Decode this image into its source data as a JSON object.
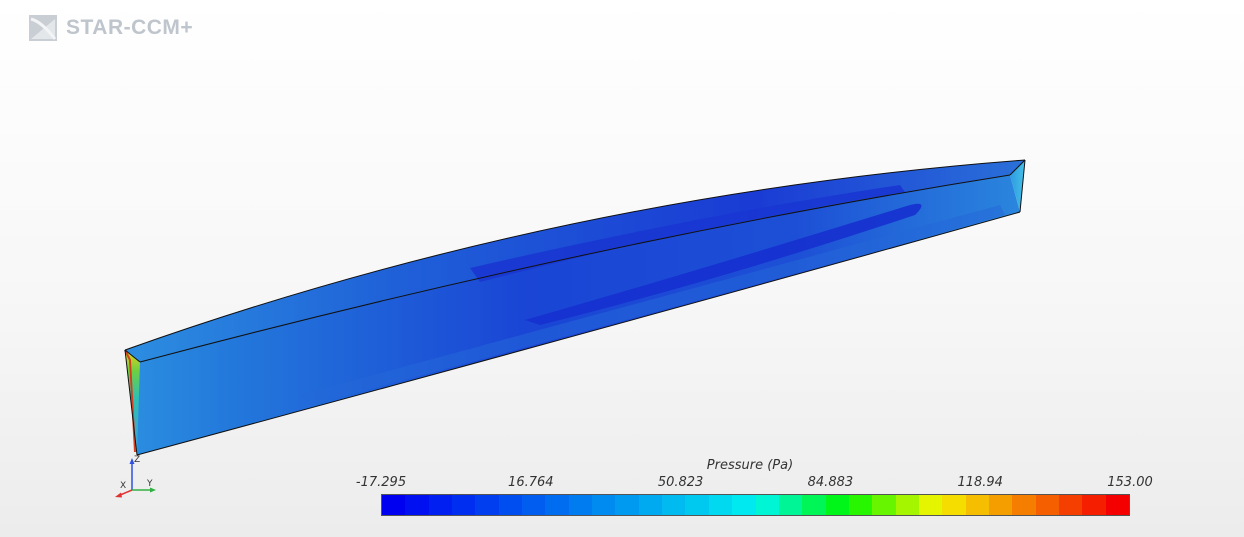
{
  "app": {
    "logo_text": "STAR-CCM+",
    "logo_icon": "star-ccm-logo-icon"
  },
  "scene": {
    "object": "hull-surface",
    "colors": {
      "deep_blue": "#1a2fd6",
      "mid_blue": "#1f63d8",
      "light_blue": "#2a86dd",
      "cyan": "#35b5e6",
      "edge": "#111111"
    }
  },
  "axes_triad": {
    "labels": {
      "x": "X",
      "y": "Y",
      "z": "Z"
    },
    "colors": {
      "x": "#e03030",
      "y": "#30b040",
      "z": "#3050e0"
    }
  },
  "colorbar": {
    "title": "Pressure (Pa)",
    "ticks": [
      "-17.295",
      "16.764",
      "50.823",
      "84.883",
      "118.94",
      "153.00"
    ],
    "min": -17.295,
    "max": 153.0,
    "segments": 32
  }
}
